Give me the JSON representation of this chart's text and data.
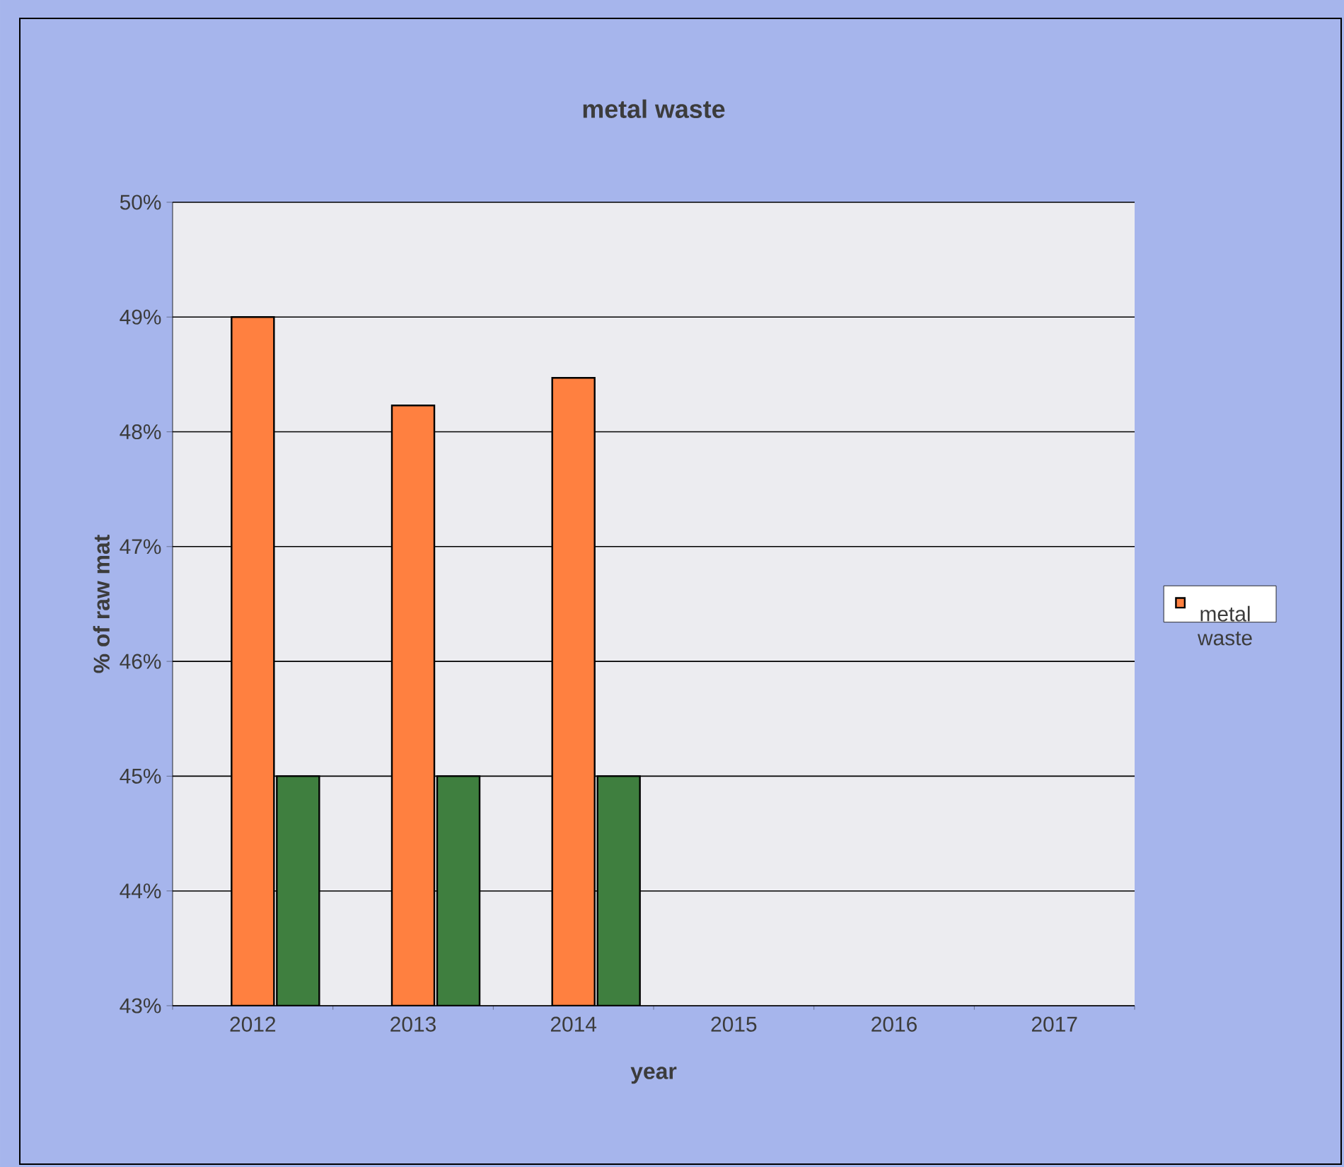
{
  "chart_data": {
    "type": "bar",
    "title": "metal waste",
    "xlabel": "year",
    "ylabel": "% of raw mat",
    "categories": [
      "2012",
      "2013",
      "2014",
      "2015",
      "2016",
      "2017"
    ],
    "series": [
      {
        "name": "metal waste",
        "color": "#ff8040",
        "values": [
          49.0,
          48.23,
          48.47,
          null,
          null,
          null
        ]
      },
      {
        "color": "#3f7f3f",
        "values": [
          45.0,
          45.0,
          45.0,
          null,
          null,
          null
        ]
      }
    ],
    "ylim": [
      43,
      50
    ],
    "yticks": [
      {
        "value": 43,
        "label": "43%"
      },
      {
        "value": 44,
        "label": "44%"
      },
      {
        "value": 45,
        "label": "45%"
      },
      {
        "value": 46,
        "label": "46%"
      },
      {
        "value": 47,
        "label": "47%"
      },
      {
        "value": 48,
        "label": "48%"
      },
      {
        "value": 49,
        "label": "49%"
      },
      {
        "value": 50,
        "label": "50%"
      }
    ],
    "grid": "y",
    "legend": "right"
  }
}
